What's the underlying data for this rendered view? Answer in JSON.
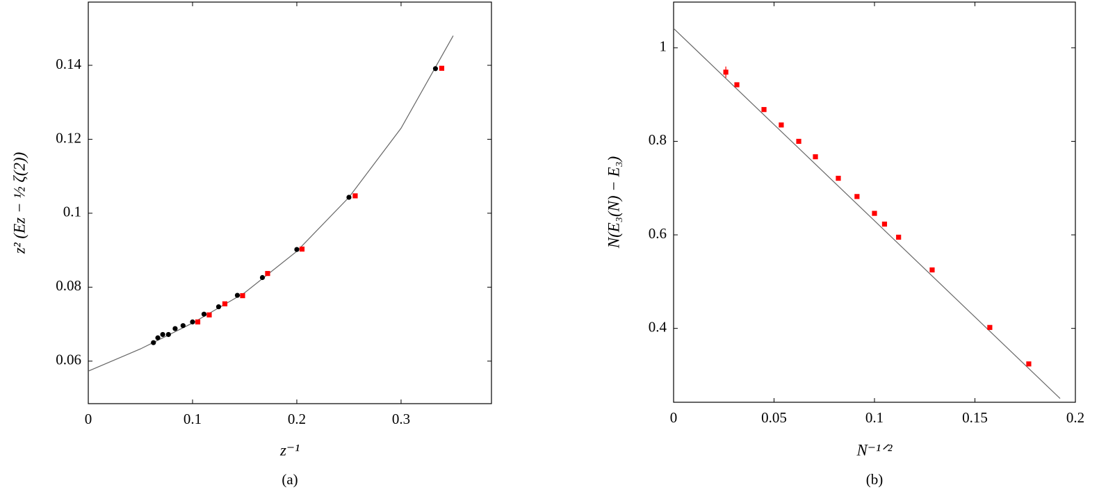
{
  "chart_data": [
    {
      "type": "scatter",
      "caption": "(a)",
      "x_label": "z⁻¹",
      "y_label": "z² (Eᴢ − ½ ζ(2))",
      "xlim": [
        0,
        0.3867
      ],
      "ylim": [
        0.0485,
        0.1571
      ],
      "xticks": [
        0,
        0.1,
        0.2,
        0.3
      ],
      "yticks": [
        0.06,
        0.08,
        0.1,
        0.12,
        0.14
      ],
      "series": [
        {
          "color": "#666666",
          "style": "line",
          "x": [
            0,
            0.05,
            0.1,
            0.15,
            0.2,
            0.25,
            0.3,
            0.35
          ],
          "values": [
            0.0573,
            0.0633,
            0.0703,
            0.0785,
            0.0897,
            0.1043,
            0.123,
            0.148
          ]
        },
        {
          "color": "#000000",
          "marker": "circle",
          "x": [
            0.0625,
            0.0667,
            0.0714,
            0.0769,
            0.0833,
            0.0909,
            0.1,
            0.111,
            0.125,
            0.143,
            0.167,
            0.2,
            0.25,
            0.333
          ],
          "values": [
            0.065,
            0.0663,
            0.0672,
            0.0672,
            0.0688,
            0.0696,
            0.0706,
            0.0727,
            0.0747,
            0.0778,
            0.0826,
            0.0902,
            0.1043,
            0.1391
          ]
        },
        {
          "color": "#ff0000",
          "marker": "square",
          "x": [
            0.105,
            0.116,
            0.131,
            0.148,
            0.172,
            0.205,
            0.256,
            0.339
          ],
          "values": [
            0.0706,
            0.0725,
            0.0755,
            0.0777,
            0.0837,
            0.0903,
            0.1047,
            0.1392
          ]
        }
      ]
    },
    {
      "type": "scatter",
      "caption": "(b)",
      "x_label": "N⁻¹ᐟ²",
      "y_label": "N(E₃(N) − E₃)",
      "xlim": [
        0,
        0.2
      ],
      "ylim": [
        0.242,
        1.0978
      ],
      "xticks": [
        0,
        0.05,
        0.1,
        0.15,
        0.2
      ],
      "yticks": [
        0.4,
        0.6,
        0.8,
        1
      ],
      "series": [
        {
          "color": "#666666",
          "style": "line",
          "x": [
            0,
            0.1924
          ],
          "values": [
            1.0415,
            0.25
          ]
        },
        {
          "color": "#ff0000",
          "marker": "square",
          "x": [
            0.026,
            0.0315,
            0.045,
            0.0536,
            0.0623,
            0.0706,
            0.082,
            0.0913,
            0.1,
            0.105,
            0.112,
            0.1287,
            0.1574,
            0.1768
          ],
          "values": [
            0.948,
            0.921,
            0.868,
            0.835,
            0.8,
            0.767,
            0.721,
            0.682,
            0.646,
            0.623,
            0.595,
            0.525,
            0.402,
            0.324
          ],
          "errors": [
            0.012,
            0.005,
            0.004,
            0.004,
            0.004,
            0.004,
            0.004,
            0.004,
            0.004,
            0.004,
            0.004,
            0.004,
            0.004,
            0.004
          ]
        }
      ]
    }
  ]
}
